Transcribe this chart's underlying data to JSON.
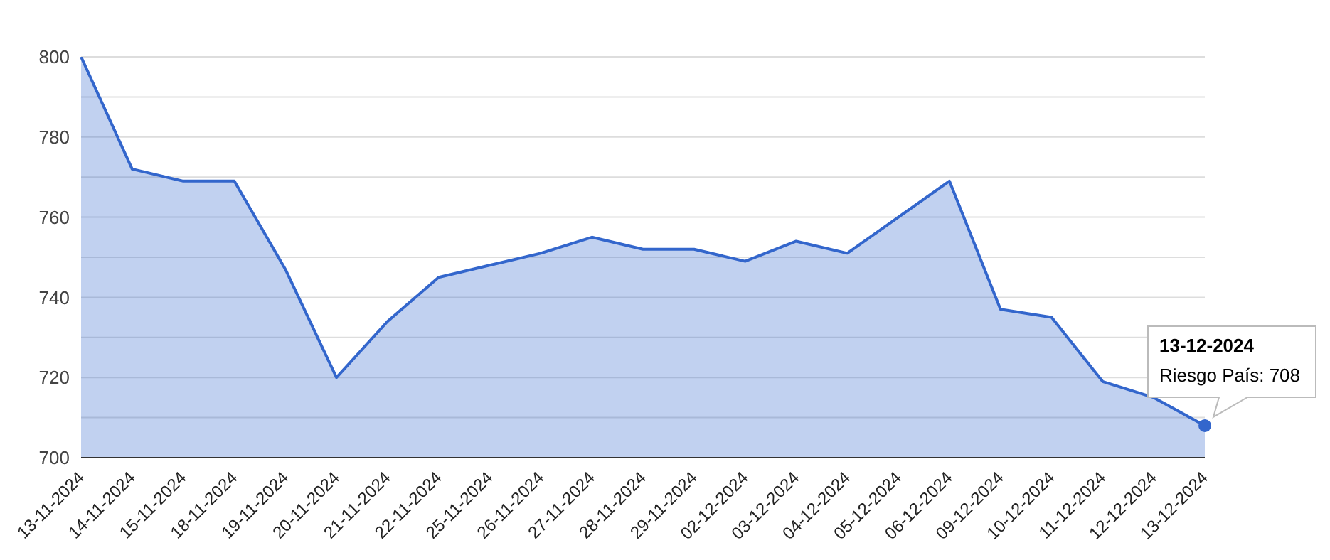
{
  "chart_data": {
    "type": "area",
    "categories": [
      "13-11-2024",
      "14-11-2024",
      "15-11-2024",
      "18-11-2024",
      "19-11-2024",
      "20-11-2024",
      "21-11-2024",
      "22-11-2024",
      "25-11-2024",
      "26-11-2024",
      "27-11-2024",
      "28-11-2024",
      "29-11-2024",
      "02-12-2024",
      "03-12-2024",
      "04-12-2024",
      "05-12-2024",
      "06-12-2024",
      "09-12-2024",
      "10-12-2024",
      "11-12-2024",
      "12-12-2024",
      "13-12-2024"
    ],
    "series": [
      {
        "color": "#3366cc",
        "values": [
          800,
          772,
          769,
          769,
          747,
          720,
          734,
          745,
          748,
          751,
          755,
          752,
          752,
          749,
          754,
          751,
          760,
          769,
          737,
          735,
          719,
          715,
          708
        ]
      }
    ],
    "ylim": [
      700,
      800
    ],
    "yticks": [
      700,
      {
        "value": 710,
        "label": null
      },
      720,
      {
        "value": 730,
        "label": null
      },
      740,
      {
        "value": 750,
        "label": null
      },
      760,
      {
        "value": 770,
        "label": null
      },
      780,
      {
        "value": 790,
        "label": null
      },
      800
    ],
    "grid": "y",
    "annotations": [
      "13-12-2024",
      "Riesgo País: 708"
    ]
  }
}
